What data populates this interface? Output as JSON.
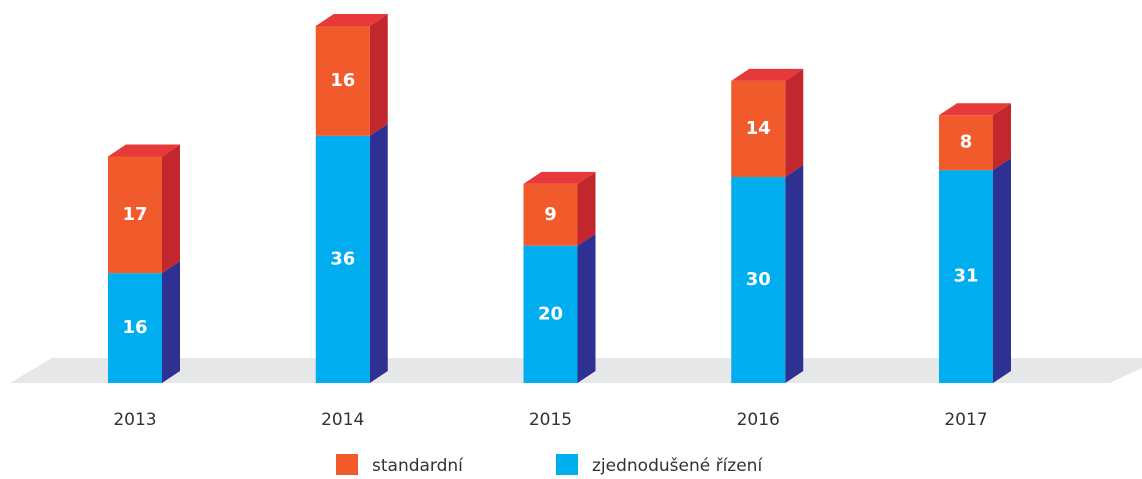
{
  "chart_data": {
    "type": "bar3d_stacked",
    "categories": [
      "2013",
      "2014",
      "2015",
      "2016",
      "2017"
    ],
    "series": [
      {
        "name": "zjednodušené řízení",
        "color": "#00aeef",
        "side_color": "#2e3192",
        "top_color": "#29c0f5",
        "values": [
          16,
          36,
          20,
          30,
          31
        ]
      },
      {
        "name": "standardní",
        "color": "#f15a2b",
        "side_color": "#c1272d",
        "top_color": "#e8393a",
        "values": [
          17,
          16,
          9,
          14,
          8
        ]
      }
    ]
  }
}
